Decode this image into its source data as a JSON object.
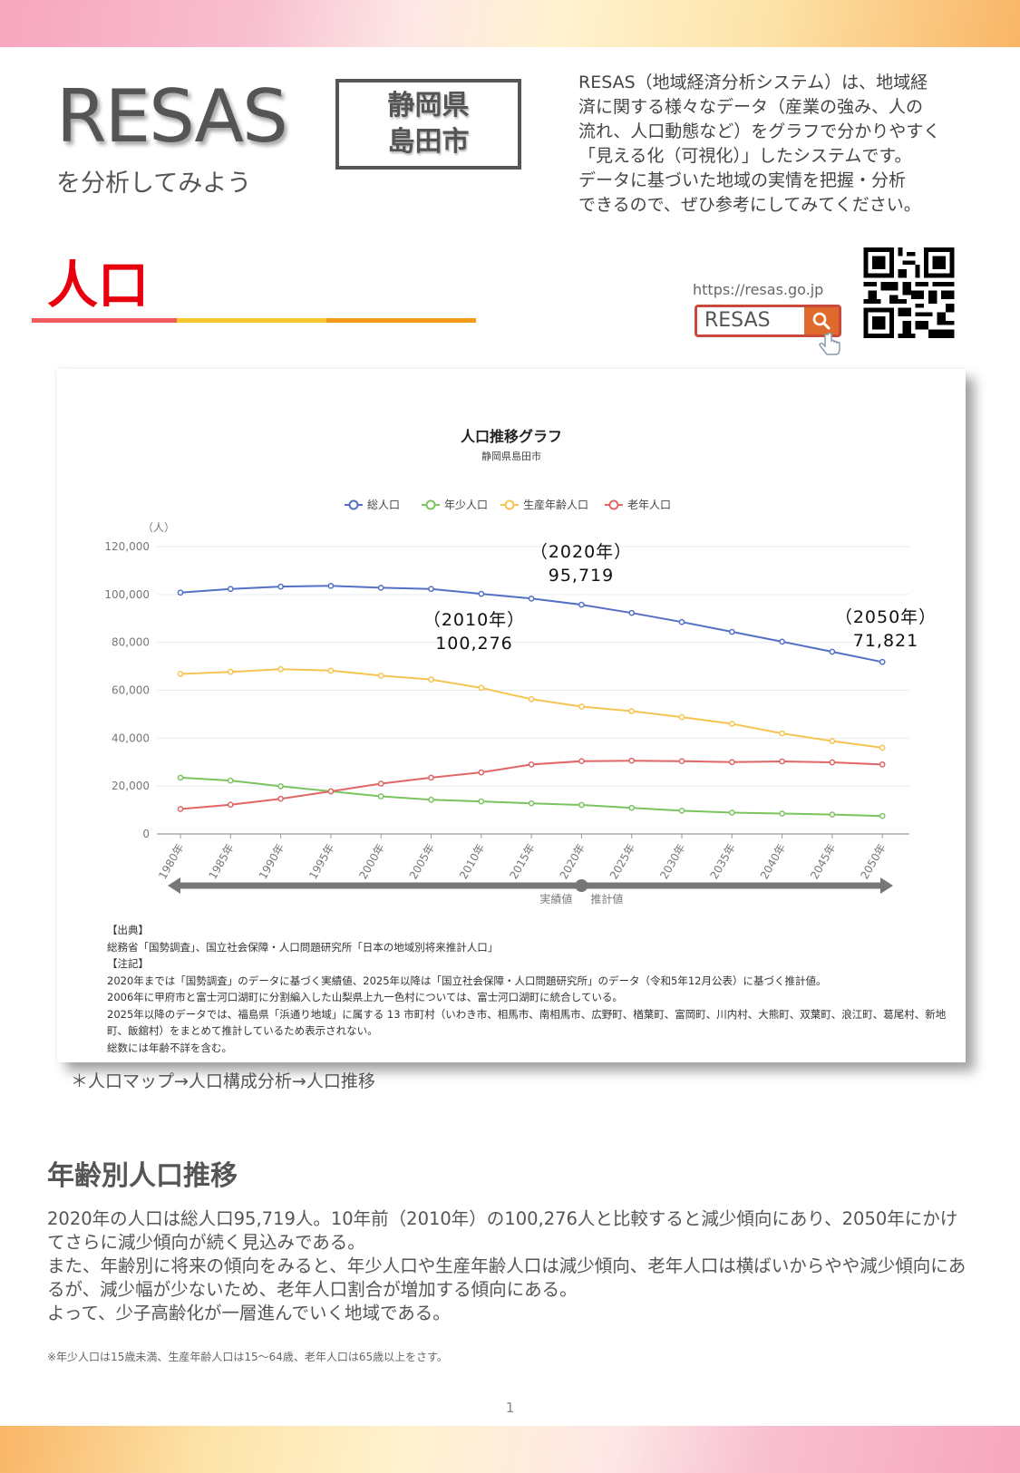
{
  "header": {
    "logo": "RESAS",
    "logo_sub": "を分析してみよう",
    "region_line1": "静岡県",
    "region_line2": "島田市",
    "intro": [
      "RESAS（地域経済分析システム）は、地域経",
      "済に関する様々なデータ（産業の強み、人の",
      "流れ、人口動態など）をグラフで分かりやすく",
      "「見える化（可視化）」したシステムです。",
      "データに基づいた地域の実情を把握・分析",
      "できるので、ぜひ参考にしてみてください。"
    ]
  },
  "section": {
    "title": "人口",
    "rule_colors": [
      "#f05a5a",
      "#f8c62e",
      "#f49b1c"
    ]
  },
  "search": {
    "url": "https://resas.go.jp",
    "query": "RESAS",
    "button_icon": "search-icon",
    "button_color": "#e06a2b",
    "border_color": "#c94a3c"
  },
  "chart_data": {
    "type": "line",
    "title": "人口推移グラフ",
    "subtitle": "静岡県島田市",
    "ylabel": "（人）",
    "xlabel": "",
    "ylim": [
      0,
      120000
    ],
    "yticks": [
      0,
      20000,
      40000,
      60000,
      80000,
      100000,
      120000
    ],
    "ytick_labels": [
      "0",
      "20,000",
      "40,000",
      "60,000",
      "80,000",
      "100,000",
      "120,000"
    ],
    "grid": true,
    "legend_position": "top",
    "categories": [
      "1980年",
      "1985年",
      "1990年",
      "1995年",
      "2000年",
      "2005年",
      "2010年",
      "2015年",
      "2020年",
      "2025年",
      "2030年",
      "2035年",
      "2040年",
      "2045年",
      "2050年"
    ],
    "series": [
      {
        "name": "総人口",
        "color": "#5470c6",
        "values": [
          100800,
          102300,
          103300,
          103600,
          102800,
          102300,
          100276,
          98300,
          95719,
          92300,
          88500,
          84400,
          80300,
          76100,
          71821
        ]
      },
      {
        "name": "年少人口",
        "color": "#7cc460",
        "values": [
          23500,
          22300,
          19900,
          17800,
          15700,
          14300,
          13600,
          12800,
          12100,
          10900,
          9700,
          8900,
          8500,
          8100,
          7500
        ]
      },
      {
        "name": "生産年齢人口",
        "color": "#f5c451",
        "values": [
          66800,
          67700,
          68800,
          68200,
          66100,
          64500,
          61000,
          56300,
          53200,
          51300,
          48800,
          46000,
          42000,
          38800,
          36000
        ]
      },
      {
        "name": "老年人口",
        "color": "#e06666",
        "values": [
          10400,
          12200,
          14700,
          17800,
          21000,
          23500,
          25700,
          29000,
          30400,
          30600,
          30400,
          30000,
          30300,
          29900,
          29000
        ]
      }
    ],
    "annotations": [
      {
        "label_year": "（2010年）",
        "label_value": "100,276"
      },
      {
        "label_year": "（2020年）",
        "label_value": "95,719"
      },
      {
        "label_year": "（2050年）",
        "label_value": "71,821"
      }
    ],
    "timeline": {
      "actual_label": "実績値",
      "projected_label": "推計値"
    }
  },
  "notes": {
    "source_heading": "【出典】",
    "source": "総務省「国勢調査」、国立社会保障・人口問題研究所「日本の地域別将来推計人口」",
    "notes_heading": "【注記】",
    "lines": [
      "2020年までは「国勢調査」のデータに基づく実績値、2025年以降は「国立社会保障・人口問題研究所」のデータ（令和5年12月公表）に基づく推計値。",
      "2006年に甲府市と富士河口湖町に分割編入した山梨県上九一色村については、富士河口湖町に統合している。",
      "2025年以降のデータでは、福島県「浜通り地域」に属する 13 市町村（いわき市、相馬市、南相馬市、広野町、楢葉町、富岡町、川内村、大熊町、双葉町、浪江町、葛尾村、新地町、飯舘村）をまとめて推計しているため表示されない。",
      "総数には年齢不詳を含む。"
    ]
  },
  "nav_path": "＊人口マップ→人口構成分析→人口推移",
  "age_section": {
    "title": "年齢別人口推移",
    "paragraphs": [
      "2020年の人口は総人口95,719人。10年前（2010年）の100,276人と比較すると減少傾向にあり、2050年にかけてさらに減少傾向が続く見込みである。",
      "また、年齢別に将来の傾向をみると、年少人口や生産年齢人口は減少傾向、老年人口は横ばいからやや減少傾向にあるが、減少幅が少ないため、老年人口割合が増加する傾向にある。",
      "よって、少子高齢化が一層進んでいく地域である。"
    ],
    "footnote": "※年少人口は15歳未満、生産年齢人口は15～64歳、老年人口は65歳以上をさす。"
  },
  "page_number": "1"
}
